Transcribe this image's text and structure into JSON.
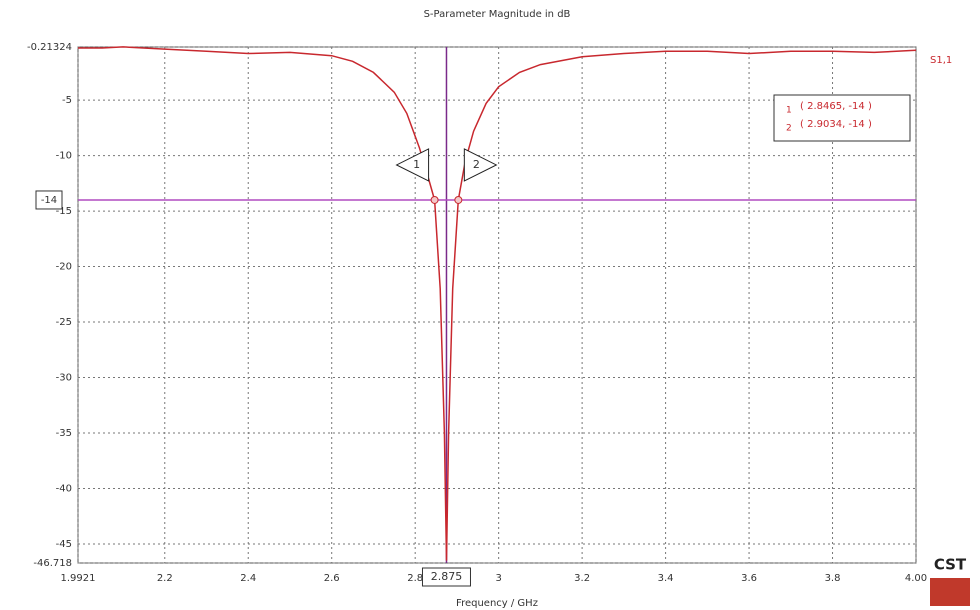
{
  "chart_data": {
    "type": "line",
    "title": "S-Parameter Magnitude in dB",
    "xlabel": "Frequency / GHz",
    "x": [
      1.9921,
      2.05,
      2.1,
      2.2,
      2.3,
      2.4,
      2.5,
      2.6,
      2.65,
      2.7,
      2.75,
      2.78,
      2.81,
      2.83,
      2.8465,
      2.86,
      2.87,
      2.875,
      2.88,
      2.89,
      2.9034,
      2.92,
      2.94,
      2.97,
      3.0,
      3.05,
      3.1,
      3.2,
      3.3,
      3.4,
      3.5,
      3.6,
      3.7,
      3.8,
      3.9,
      4.0
    ],
    "series": [
      {
        "name": "S1,1",
        "color": "#c8282e",
        "values": [
          -0.3,
          -0.3,
          -0.2,
          -0.4,
          -0.6,
          -0.8,
          -0.7,
          -1.0,
          -1.5,
          -2.5,
          -4.3,
          -6.2,
          -9.3,
          -11.8,
          -14,
          -22,
          -35,
          -46.5,
          -35,
          -22,
          -14,
          -10.5,
          -7.8,
          -5.3,
          -3.8,
          -2.5,
          -1.8,
          -1.1,
          -0.8,
          -0.6,
          -0.6,
          -0.8,
          -0.6,
          -0.6,
          -0.7,
          -0.5
        ]
      }
    ],
    "xlim": [
      1.9921,
      4.0
    ],
    "ylim": [
      -46.718,
      -0.21324
    ],
    "xticks": [
      1.9921,
      2.2,
      2.4,
      2.6,
      2.8,
      3,
      3.2,
      3.4,
      3.6,
      3.8,
      {
        "value": 4.0,
        "label": "4.00"
      }
    ],
    "yticks": [
      -0.21324,
      -5,
      -10,
      -15,
      -20,
      -25,
      -30,
      -35,
      -40,
      -45,
      -46.718
    ],
    "grid": true,
    "x_marker": 2.875,
    "y_marker": -14,
    "markers": [
      {
        "label": "1",
        "x": 2.8465,
        "y": -14,
        "text": "( 2.8465, -14 )"
      },
      {
        "label": "2",
        "x": 2.9034,
        "y": -14,
        "text": "( 2.9034, -14 )"
      }
    ],
    "logo": "CST"
  }
}
